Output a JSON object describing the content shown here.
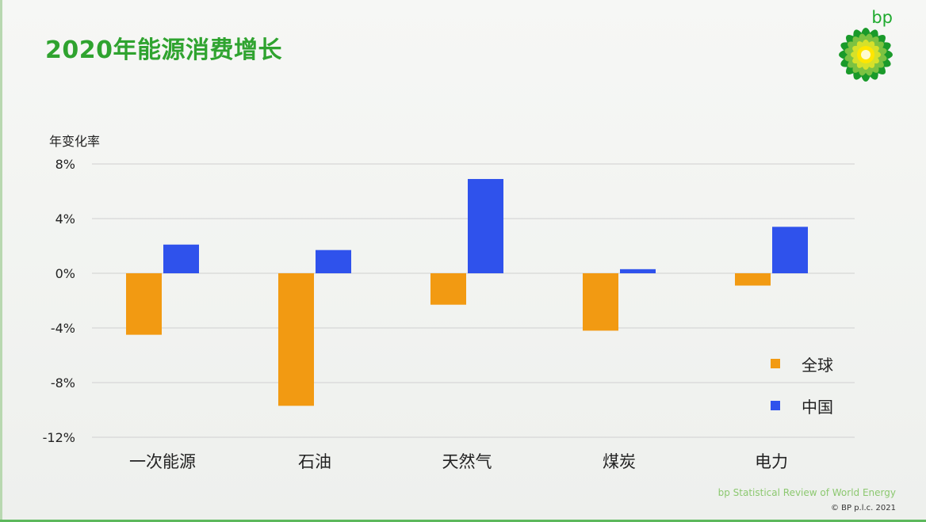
{
  "title": "2020年能源消费增长",
  "logo": {
    "text": "bp",
    "icon": "bp-helios-sunflower-logo"
  },
  "footer": {
    "source": "bp Statistical Review of World Energy",
    "copyright": "© BP p.l.c. 2021"
  },
  "colors": {
    "title": "#2fa32f",
    "global": "#f29a12",
    "china": "#2f52ec",
    "grid": "#d7d7d7"
  },
  "chart_data": {
    "type": "bar",
    "title": "2020年能源消费增长",
    "ylabel": "年变化率",
    "xlabel": "",
    "categories": [
      "一次能源",
      "石油",
      "天然气",
      "煤炭",
      "电力"
    ],
    "series": [
      {
        "name": "全球",
        "values": [
          -4.5,
          -9.7,
          -2.3,
          -4.2,
          -0.9
        ]
      },
      {
        "name": "中国",
        "values": [
          2.1,
          1.7,
          6.9,
          0.3,
          3.4
        ]
      }
    ],
    "ylim": [
      -12,
      8
    ],
    "yticks": [
      8,
      4,
      0,
      -4,
      -8,
      -12
    ],
    "ytick_labels": [
      "8%",
      "4%",
      "0%",
      "-4%",
      "-8%",
      "-12%"
    ],
    "grid": true,
    "legend_position": "right"
  }
}
